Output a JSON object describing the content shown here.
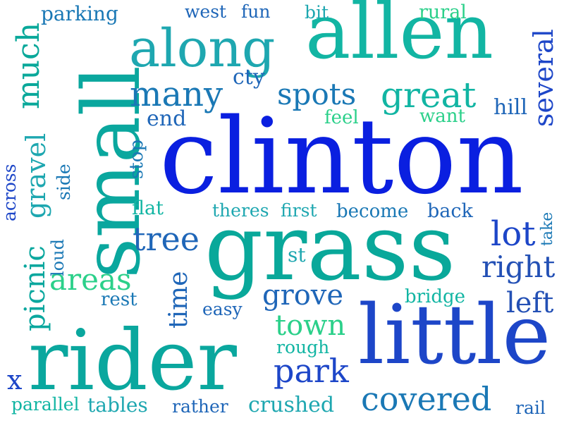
{
  "palette": {
    "blue": "#0a1fe0",
    "royal": "#1d46c8",
    "steel": "#1f66b8",
    "cobalt": "#2350b5",
    "cerulean": "#1a78b5",
    "teal": "#0aa79e",
    "sea": "#09a89a",
    "mint": "#2bd08a",
    "turquoise": "#12b5a3",
    "aqua": "#1ea7b0"
  },
  "words": [
    {
      "text": "clinton",
      "color": "blue"
    },
    {
      "text": "grass",
      "color": "sea"
    },
    {
      "text": "small",
      "color": "teal"
    },
    {
      "text": "rider",
      "color": "teal"
    },
    {
      "text": "little",
      "color": "royal"
    },
    {
      "text": "allen",
      "color": "turquoise"
    },
    {
      "text": "along",
      "color": "aqua"
    },
    {
      "text": "great",
      "color": "turquoise"
    },
    {
      "text": "spots",
      "color": "cerulean"
    },
    {
      "text": "many",
      "color": "cerulean"
    },
    {
      "text": "much",
      "color": "sea"
    },
    {
      "text": "several",
      "color": "royal"
    },
    {
      "text": "gravel",
      "color": "aqua"
    },
    {
      "text": "picnic",
      "color": "teal"
    },
    {
      "text": "covered",
      "color": "cerulean"
    },
    {
      "text": "park",
      "color": "royal"
    },
    {
      "text": "town",
      "color": "mint"
    },
    {
      "text": "grove",
      "color": "steel"
    },
    {
      "text": "tree",
      "color": "steel"
    },
    {
      "text": "lot",
      "color": "royal"
    },
    {
      "text": "right",
      "color": "cobalt"
    },
    {
      "text": "left",
      "color": "cobalt"
    },
    {
      "text": "areas",
      "color": "mint"
    },
    {
      "text": "time",
      "color": "steel"
    },
    {
      "text": "crushed",
      "color": "aqua"
    },
    {
      "text": "tables",
      "color": "aqua"
    },
    {
      "text": "parallel",
      "color": "turquoise"
    },
    {
      "text": "parking",
      "color": "cerulean"
    },
    {
      "text": "west",
      "color": "steel"
    },
    {
      "text": "fun",
      "color": "steel"
    },
    {
      "text": "bit",
      "color": "aqua"
    },
    {
      "text": "rural",
      "color": "mint"
    },
    {
      "text": "cty",
      "color": "steel"
    },
    {
      "text": "end",
      "color": "steel"
    },
    {
      "text": "feel",
      "color": "mint"
    },
    {
      "text": "want",
      "color": "mint"
    },
    {
      "text": "hill",
      "color": "steel"
    },
    {
      "text": "stop",
      "color": "cerulean"
    },
    {
      "text": "across",
      "color": "royal"
    },
    {
      "text": "side",
      "color": "cerulean"
    },
    {
      "text": "flat",
      "color": "turquoise"
    },
    {
      "text": "theres",
      "color": "aqua"
    },
    {
      "text": "first",
      "color": "aqua"
    },
    {
      "text": "become",
      "color": "cerulean"
    },
    {
      "text": "back",
      "color": "steel"
    },
    {
      "text": "take",
      "color": "cerulean"
    },
    {
      "text": "loud",
      "color": "cerulean"
    },
    {
      "text": "st",
      "color": "aqua"
    },
    {
      "text": "rest",
      "color": "cerulean"
    },
    {
      "text": "easy",
      "color": "steel"
    },
    {
      "text": "bridge",
      "color": "turquoise"
    },
    {
      "text": "rough",
      "color": "turquoise"
    },
    {
      "text": "x",
      "color": "royal"
    },
    {
      "text": "rather",
      "color": "steel"
    },
    {
      "text": "rail",
      "color": "steel"
    }
  ]
}
